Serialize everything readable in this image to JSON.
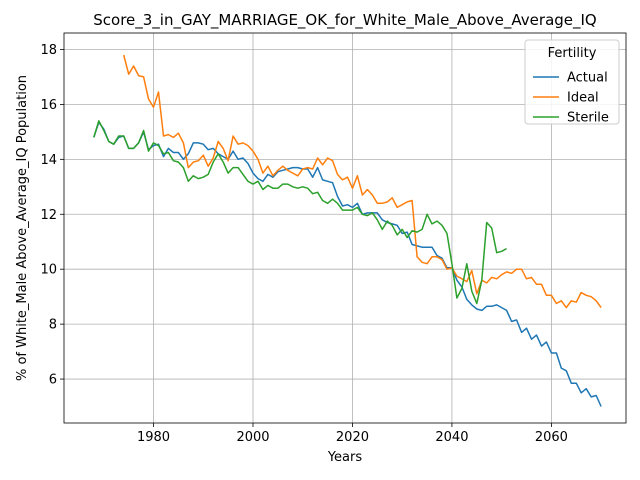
{
  "chart_data": {
    "type": "line",
    "title": "Score_3_in_GAY_MARRIAGE_OK_for_White_Male_Above_Average_IQ",
    "xlabel": "Years",
    "ylabel": "% of White_Male Above_Average_IQ Population",
    "xlim": [
      1962,
      2075
    ],
    "ylim": [
      4.4,
      18.6
    ],
    "x_ticks": [
      1980,
      2000,
      2020,
      2040,
      2060
    ],
    "y_ticks": [
      6,
      8,
      10,
      12,
      14,
      16,
      18
    ],
    "grid": true,
    "legend": {
      "title": "Fertility",
      "placement": "top-right"
    },
    "series": [
      {
        "name": "Actual",
        "color": "#1f77b4",
        "points": [
          [
            1968,
            14.8
          ],
          [
            1969,
            15.35
          ],
          [
            1970,
            15.1
          ],
          [
            1971,
            14.65
          ],
          [
            1972,
            14.55
          ],
          [
            1973,
            14.8
          ],
          [
            1974,
            14.85
          ],
          [
            1975,
            14.4
          ],
          [
            1976,
            14.4
          ],
          [
            1977,
            14.6
          ],
          [
            1978,
            15.0
          ],
          [
            1979,
            14.35
          ],
          [
            1980,
            14.5
          ],
          [
            1981,
            14.55
          ],
          [
            1982,
            14.1
          ],
          [
            1983,
            14.4
          ],
          [
            1984,
            14.25
          ],
          [
            1985,
            14.25
          ],
          [
            1986,
            14.0
          ],
          [
            1987,
            14.2
          ],
          [
            1988,
            14.6
          ],
          [
            1989,
            14.6
          ],
          [
            1990,
            14.55
          ],
          [
            1991,
            14.35
          ],
          [
            1992,
            14.4
          ],
          [
            1993,
            14.2
          ],
          [
            1994,
            14.1
          ],
          [
            1995,
            14.0
          ],
          [
            1996,
            14.3
          ],
          [
            1997,
            14.0
          ],
          [
            1998,
            14.05
          ],
          [
            1999,
            13.85
          ],
          [
            2000,
            13.5
          ],
          [
            2001,
            13.3
          ],
          [
            2002,
            13.2
          ],
          [
            2003,
            13.45
          ],
          [
            2004,
            13.35
          ],
          [
            2005,
            13.55
          ],
          [
            2006,
            13.6
          ],
          [
            2007,
            13.65
          ],
          [
            2008,
            13.7
          ],
          [
            2009,
            13.7
          ],
          [
            2010,
            13.65
          ],
          [
            2011,
            13.65
          ],
          [
            2012,
            13.35
          ],
          [
            2013,
            13.7
          ],
          [
            2014,
            13.25
          ],
          [
            2015,
            13.2
          ],
          [
            2016,
            13.15
          ],
          [
            2017,
            12.65
          ],
          [
            2018,
            12.3
          ],
          [
            2019,
            12.35
          ],
          [
            2020,
            12.25
          ],
          [
            2021,
            12.4
          ],
          [
            2022,
            12.0
          ],
          [
            2023,
            12.05
          ],
          [
            2024,
            12.05
          ],
          [
            2025,
            12.05
          ],
          [
            2026,
            11.8
          ],
          [
            2027,
            11.7
          ],
          [
            2028,
            11.65
          ],
          [
            2029,
            11.6
          ],
          [
            2030,
            11.3
          ],
          [
            2031,
            11.35
          ],
          [
            2032,
            10.9
          ],
          [
            2033,
            10.85
          ],
          [
            2034,
            10.8
          ],
          [
            2035,
            10.8
          ],
          [
            2036,
            10.8
          ],
          [
            2037,
            10.5
          ],
          [
            2038,
            10.4
          ],
          [
            2039,
            10.05
          ],
          [
            2040,
            10.05
          ],
          [
            2041,
            9.6
          ],
          [
            2042,
            9.35
          ],
          [
            2043,
            8.9
          ],
          [
            2044,
            8.7
          ],
          [
            2045,
            8.55
          ],
          [
            2046,
            8.5
          ],
          [
            2047,
            8.65
          ],
          [
            2048,
            8.65
          ],
          [
            2049,
            8.7
          ],
          [
            2050,
            8.6
          ],
          [
            2051,
            8.5
          ],
          [
            2052,
            8.1
          ],
          [
            2053,
            8.15
          ],
          [
            2054,
            7.7
          ],
          [
            2055,
            7.85
          ],
          [
            2056,
            7.45
          ],
          [
            2057,
            7.6
          ],
          [
            2058,
            7.2
          ],
          [
            2059,
            7.35
          ],
          [
            2060,
            6.95
          ],
          [
            2061,
            6.95
          ],
          [
            2062,
            6.4
          ],
          [
            2063,
            6.3
          ],
          [
            2064,
            5.85
          ],
          [
            2065,
            5.85
          ],
          [
            2066,
            5.5
          ],
          [
            2067,
            5.65
          ],
          [
            2068,
            5.35
          ],
          [
            2069,
            5.4
          ],
          [
            2070,
            5.0
          ]
        ]
      },
      {
        "name": "Ideal",
        "color": "#ff7f0e",
        "points": [
          [
            1974,
            17.8
          ],
          [
            1975,
            17.1
          ],
          [
            1976,
            17.4
          ],
          [
            1977,
            17.05
          ],
          [
            1978,
            17.0
          ],
          [
            1979,
            16.2
          ],
          [
            1980,
            15.9
          ],
          [
            1981,
            16.45
          ],
          [
            1982,
            14.85
          ],
          [
            1983,
            14.9
          ],
          [
            1984,
            14.8
          ],
          [
            1985,
            14.95
          ],
          [
            1986,
            14.6
          ],
          [
            1987,
            13.7
          ],
          [
            1988,
            13.9
          ],
          [
            1989,
            13.95
          ],
          [
            1990,
            14.15
          ],
          [
            1991,
            13.75
          ],
          [
            1992,
            14.05
          ],
          [
            1993,
            14.65
          ],
          [
            1994,
            14.4
          ],
          [
            1995,
            13.95
          ],
          [
            1996,
            14.85
          ],
          [
            1997,
            14.55
          ],
          [
            1998,
            14.6
          ],
          [
            1999,
            14.5
          ],
          [
            2000,
            14.3
          ],
          [
            2001,
            14.0
          ],
          [
            2002,
            13.5
          ],
          [
            2003,
            13.75
          ],
          [
            2004,
            13.4
          ],
          [
            2005,
            13.6
          ],
          [
            2006,
            13.75
          ],
          [
            2007,
            13.6
          ],
          [
            2008,
            13.5
          ],
          [
            2009,
            13.4
          ],
          [
            2010,
            13.65
          ],
          [
            2011,
            13.7
          ],
          [
            2012,
            13.65
          ],
          [
            2013,
            14.05
          ],
          [
            2014,
            13.8
          ],
          [
            2015,
            14.05
          ],
          [
            2016,
            13.95
          ],
          [
            2017,
            13.45
          ],
          [
            2018,
            13.25
          ],
          [
            2019,
            13.35
          ],
          [
            2020,
            12.95
          ],
          [
            2021,
            13.4
          ],
          [
            2022,
            12.7
          ],
          [
            2023,
            12.9
          ],
          [
            2024,
            12.7
          ],
          [
            2025,
            12.4
          ],
          [
            2026,
            12.4
          ],
          [
            2027,
            12.45
          ],
          [
            2028,
            12.6
          ],
          [
            2029,
            12.25
          ],
          [
            2030,
            12.35
          ],
          [
            2031,
            12.45
          ],
          [
            2032,
            12.5
          ],
          [
            2033,
            10.45
          ],
          [
            2034,
            10.25
          ],
          [
            2035,
            10.2
          ],
          [
            2036,
            10.45
          ],
          [
            2037,
            10.45
          ],
          [
            2038,
            10.35
          ],
          [
            2039,
            10.0
          ],
          [
            2040,
            10.05
          ],
          [
            2041,
            9.75
          ],
          [
            2042,
            9.65
          ],
          [
            2043,
            9.55
          ],
          [
            2044,
            9.95
          ],
          [
            2045,
            9.1
          ],
          [
            2046,
            9.6
          ],
          [
            2047,
            9.5
          ],
          [
            2048,
            9.7
          ],
          [
            2049,
            9.65
          ],
          [
            2050,
            9.8
          ],
          [
            2051,
            9.9
          ],
          [
            2052,
            9.85
          ],
          [
            2053,
            10.0
          ],
          [
            2054,
            10.0
          ],
          [
            2055,
            9.65
          ],
          [
            2056,
            9.7
          ],
          [
            2057,
            9.45
          ],
          [
            2058,
            9.45
          ],
          [
            2059,
            9.05
          ],
          [
            2060,
            9.05
          ],
          [
            2061,
            8.75
          ],
          [
            2062,
            8.85
          ],
          [
            2063,
            8.6
          ],
          [
            2064,
            8.85
          ],
          [
            2065,
            8.8
          ],
          [
            2066,
            9.15
          ],
          [
            2067,
            9.05
          ],
          [
            2068,
            9.0
          ],
          [
            2069,
            8.85
          ],
          [
            2070,
            8.6
          ]
        ]
      },
      {
        "name": "Sterile",
        "color": "#2ca02c",
        "points": [
          [
            1968,
            14.8
          ],
          [
            1969,
            15.4
          ],
          [
            1970,
            15.05
          ],
          [
            1971,
            14.65
          ],
          [
            1972,
            14.55
          ],
          [
            1973,
            14.85
          ],
          [
            1974,
            14.85
          ],
          [
            1975,
            14.4
          ],
          [
            1976,
            14.4
          ],
          [
            1977,
            14.6
          ],
          [
            1978,
            15.05
          ],
          [
            1979,
            14.3
          ],
          [
            1980,
            14.6
          ],
          [
            1981,
            14.5
          ],
          [
            1982,
            14.2
          ],
          [
            1983,
            14.25
          ],
          [
            1984,
            13.95
          ],
          [
            1985,
            13.9
          ],
          [
            1986,
            13.7
          ],
          [
            1987,
            13.2
          ],
          [
            1988,
            13.4
          ],
          [
            1989,
            13.3
          ],
          [
            1990,
            13.35
          ],
          [
            1991,
            13.45
          ],
          [
            1992,
            13.9
          ],
          [
            1993,
            14.2
          ],
          [
            1994,
            13.9
          ],
          [
            1995,
            13.5
          ],
          [
            1996,
            13.7
          ],
          [
            1997,
            13.7
          ],
          [
            1998,
            13.45
          ],
          [
            1999,
            13.2
          ],
          [
            2000,
            13.1
          ],
          [
            2001,
            13.2
          ],
          [
            2002,
            12.9
          ],
          [
            2003,
            13.05
          ],
          [
            2004,
            12.95
          ],
          [
            2005,
            12.95
          ],
          [
            2006,
            13.1
          ],
          [
            2007,
            13.1
          ],
          [
            2008,
            13.0
          ],
          [
            2009,
            12.95
          ],
          [
            2010,
            13.0
          ],
          [
            2011,
            12.95
          ],
          [
            2012,
            12.75
          ],
          [
            2013,
            12.8
          ],
          [
            2014,
            12.5
          ],
          [
            2015,
            12.4
          ],
          [
            2016,
            12.55
          ],
          [
            2017,
            12.4
          ],
          [
            2018,
            12.15
          ],
          [
            2019,
            12.15
          ],
          [
            2020,
            12.15
          ],
          [
            2021,
            12.25
          ],
          [
            2022,
            12.0
          ],
          [
            2023,
            11.95
          ],
          [
            2024,
            12.05
          ],
          [
            2025,
            11.8
          ],
          [
            2026,
            11.45
          ],
          [
            2027,
            11.75
          ],
          [
            2028,
            11.6
          ],
          [
            2029,
            11.25
          ],
          [
            2030,
            11.45
          ],
          [
            2031,
            11.15
          ],
          [
            2032,
            11.4
          ],
          [
            2033,
            11.35
          ],
          [
            2034,
            11.45
          ],
          [
            2035,
            12.0
          ],
          [
            2036,
            11.65
          ],
          [
            2037,
            11.75
          ],
          [
            2038,
            11.6
          ],
          [
            2039,
            11.3
          ],
          [
            2040,
            10.2
          ],
          [
            2041,
            8.95
          ],
          [
            2042,
            9.3
          ],
          [
            2043,
            10.2
          ],
          [
            2044,
            9.2
          ],
          [
            2045,
            8.75
          ],
          [
            2046,
            9.6
          ],
          [
            2047,
            11.7
          ],
          [
            2048,
            11.5
          ],
          [
            2049,
            10.6
          ],
          [
            2050,
            10.65
          ],
          [
            2051,
            10.75
          ]
        ]
      }
    ]
  }
}
